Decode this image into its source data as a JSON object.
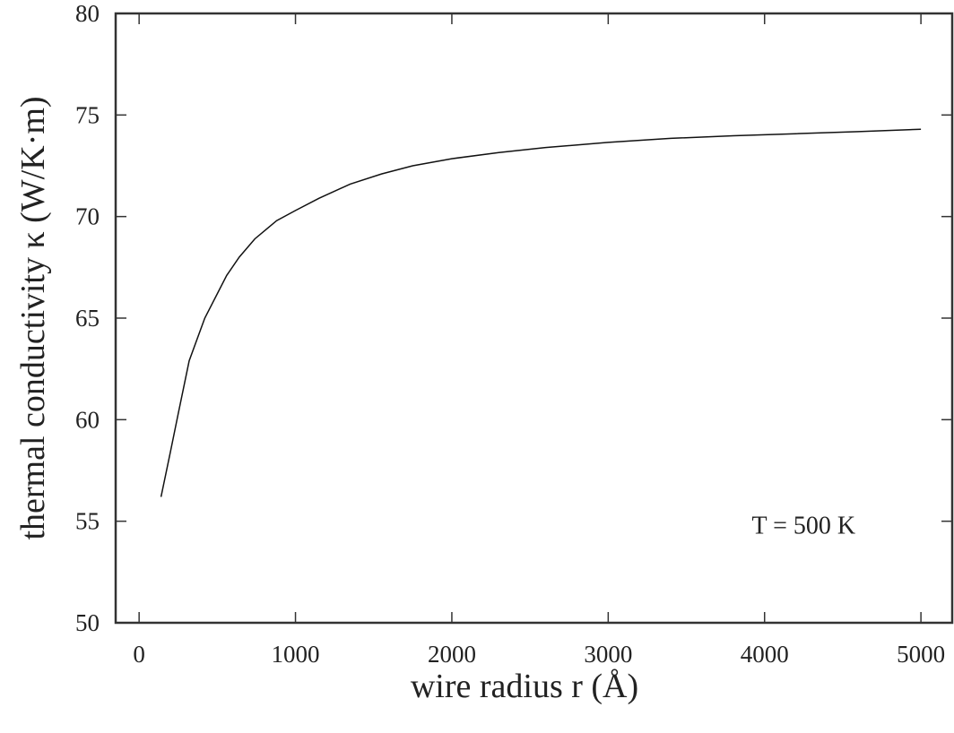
{
  "chart_data": {
    "type": "line",
    "title": "",
    "xlabel": "wire radius r (Å)",
    "ylabel": "thermal conductivity κ (W/K·m)",
    "xlim": [
      -150,
      5200
    ],
    "ylim": [
      50,
      80
    ],
    "xticks": [
      0,
      1000,
      2000,
      3000,
      4000,
      5000
    ],
    "xtick_labels": [
      "0",
      "1000",
      "2000",
      "3000",
      "4000",
      "5000"
    ],
    "yticks": [
      50,
      55,
      60,
      65,
      70,
      75,
      80
    ],
    "ytick_labels": [
      "50",
      "55",
      "60",
      "65",
      "70",
      "75",
      "80"
    ],
    "grid": false,
    "annotations": [
      {
        "text": "T = 500 K",
        "x": 4250,
        "y": 54.4
      }
    ],
    "series": [
      {
        "x": [
          140,
          200,
          250,
          320,
          420,
          560,
          640,
          740,
          880,
          1000,
          1150,
          1350,
          1550,
          1750,
          2000,
          2300,
          2600,
          3000,
          3400,
          3800,
          4200,
          4600,
          5000
        ],
        "y": [
          56.2,
          58.4,
          60.3,
          62.9,
          65.0,
          67.1,
          68.0,
          68.9,
          69.8,
          70.3,
          70.9,
          71.6,
          72.1,
          72.5,
          72.85,
          73.15,
          73.4,
          73.65,
          73.85,
          73.98,
          74.08,
          74.18,
          74.3
        ],
        "color": "#111111"
      }
    ]
  }
}
